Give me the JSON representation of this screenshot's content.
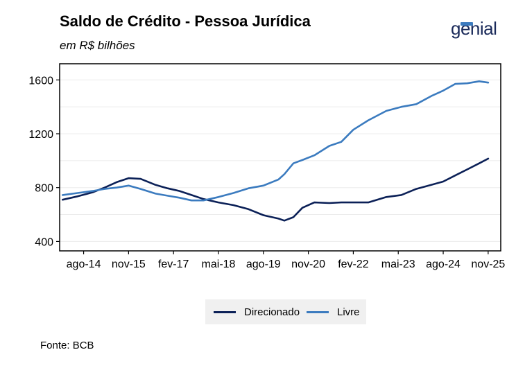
{
  "header": {
    "title": "Saldo de Crédito - Pessoa Jurídica",
    "subtitle": "em R$ bilhões",
    "logo_text": "genial"
  },
  "footer": {
    "source": "Fonte: BCB"
  },
  "colors": {
    "direcionado": "#0b2057",
    "livre": "#3b7bbf",
    "logo_accent": "#3b7bbf"
  },
  "chart_data": {
    "type": "line",
    "title": "Saldo de Crédito - Pessoa Jurídica",
    "subtitle": "em R$ bilhões",
    "xlabel": "",
    "ylabel": "",
    "x_range": [
      "2013-12",
      "2025-11"
    ],
    "ylim": [
      330,
      1720
    ],
    "y_ticks": [
      400,
      800,
      1200,
      1600
    ],
    "x_ticks": [
      {
        "label": "ago-14",
        "date": "2014-08"
      },
      {
        "label": "nov-15",
        "date": "2015-11"
      },
      {
        "label": "fev-17",
        "date": "2017-02"
      },
      {
        "label": "mai-18",
        "date": "2018-05"
      },
      {
        "label": "ago-19",
        "date": "2019-08"
      },
      {
        "label": "nov-20",
        "date": "2020-11"
      },
      {
        "label": "fev-22",
        "date": "2022-02"
      },
      {
        "label": "mai-23",
        "date": "2023-05"
      },
      {
        "label": "ago-24",
        "date": "2024-08"
      },
      {
        "label": "nov-25",
        "date": "2025-11"
      }
    ],
    "grid": "horizontal",
    "legend_position": "bottom",
    "series": [
      {
        "name": "Direcionado",
        "color": "#0b2057",
        "points": [
          [
            "2014-01",
            710
          ],
          [
            "2014-06",
            735
          ],
          [
            "2014-11",
            765
          ],
          [
            "2015-03",
            800
          ],
          [
            "2015-07",
            840
          ],
          [
            "2015-11",
            870
          ],
          [
            "2016-03",
            865
          ],
          [
            "2016-08",
            820
          ],
          [
            "2016-12",
            795
          ],
          [
            "2017-04",
            775
          ],
          [
            "2017-08",
            745
          ],
          [
            "2017-12",
            715
          ],
          [
            "2018-05",
            690
          ],
          [
            "2018-10",
            670
          ],
          [
            "2019-03",
            640
          ],
          [
            "2019-08",
            595
          ],
          [
            "2020-01",
            570
          ],
          [
            "2020-03",
            555
          ],
          [
            "2020-06",
            580
          ],
          [
            "2020-09",
            650
          ],
          [
            "2021-01",
            690
          ],
          [
            "2021-06",
            685
          ],
          [
            "2021-10",
            690
          ],
          [
            "2022-02",
            690
          ],
          [
            "2022-07",
            690
          ],
          [
            "2023-01",
            730
          ],
          [
            "2023-06",
            745
          ],
          [
            "2023-11",
            790
          ],
          [
            "2024-04",
            820
          ],
          [
            "2024-08",
            845
          ],
          [
            "2024-12",
            890
          ],
          [
            "2025-04",
            935
          ],
          [
            "2025-08",
            980
          ],
          [
            "2025-11",
            1015
          ]
        ]
      },
      {
        "name": "Livre",
        "color": "#3b7bbf",
        "points": [
          [
            "2014-01",
            745
          ],
          [
            "2014-06",
            760
          ],
          [
            "2014-11",
            775
          ],
          [
            "2015-03",
            790
          ],
          [
            "2015-07",
            800
          ],
          [
            "2015-11",
            815
          ],
          [
            "2016-03",
            790
          ],
          [
            "2016-08",
            755
          ],
          [
            "2016-12",
            740
          ],
          [
            "2017-04",
            725
          ],
          [
            "2017-08",
            705
          ],
          [
            "2017-12",
            705
          ],
          [
            "2018-05",
            730
          ],
          [
            "2018-10",
            760
          ],
          [
            "2019-03",
            795
          ],
          [
            "2019-08",
            815
          ],
          [
            "2020-01",
            860
          ],
          [
            "2020-03",
            900
          ],
          [
            "2020-06",
            980
          ],
          [
            "2020-09",
            1005
          ],
          [
            "2021-01",
            1040
          ],
          [
            "2021-06",
            1110
          ],
          [
            "2021-10",
            1140
          ],
          [
            "2022-02",
            1230
          ],
          [
            "2022-07",
            1300
          ],
          [
            "2023-01",
            1370
          ],
          [
            "2023-06",
            1400
          ],
          [
            "2023-11",
            1420
          ],
          [
            "2024-04",
            1480
          ],
          [
            "2024-08",
            1520
          ],
          [
            "2024-12",
            1570
          ],
          [
            "2025-04",
            1575
          ],
          [
            "2025-08",
            1590
          ],
          [
            "2025-11",
            1580
          ]
        ]
      }
    ]
  }
}
